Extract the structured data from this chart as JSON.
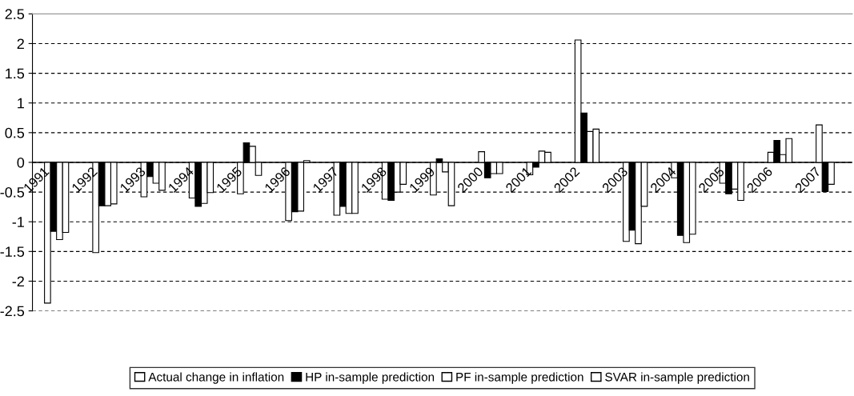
{
  "chart_data": {
    "type": "bar",
    "categories": [
      "1991",
      "1992",
      "1993",
      "1994",
      "1995",
      "1996",
      "1997",
      "1998",
      "1999",
      "2000",
      "2001",
      "2002",
      "2003",
      "2004",
      "2005",
      "2006",
      "2007"
    ],
    "series": [
      {
        "name": "Actual change in inflation",
        "color": "#ffffff",
        "values": [
          -2.37,
          -1.52,
          -0.58,
          -0.6,
          -0.53,
          -0.98,
          -0.89,
          -0.62,
          -0.55,
          0.18,
          -0.21,
          2.06,
          -1.33,
          -0.26,
          -0.35,
          0.17,
          0.63
        ]
      },
      {
        "name": "HP in-sample prediction",
        "color": "#000000",
        "values": [
          -1.16,
          -0.73,
          -0.24,
          -0.74,
          0.33,
          -0.83,
          -0.74,
          -0.64,
          0.06,
          -0.26,
          -0.08,
          0.83,
          -1.14,
          -1.23,
          -0.53,
          0.37,
          -0.49
        ]
      },
      {
        "name": "PF in-sample prediction",
        "color": "#ffffff",
        "values": [
          -1.3,
          -0.73,
          -0.35,
          -0.69,
          0.27,
          -0.82,
          -0.86,
          -0.5,
          -0.16,
          -0.19,
          0.19,
          0.52,
          -1.37,
          -1.35,
          -0.45,
          0.13,
          -0.37
        ]
      },
      {
        "name": "SVAR in-sample prediction",
        "color": "#ffffff",
        "values": [
          -1.18,
          -0.7,
          -0.47,
          -0.51,
          -0.22,
          0.03,
          -0.86,
          -0.37,
          -0.73,
          -0.19,
          0.17,
          0.56,
          -0.74,
          -1.21,
          -0.64,
          0.4,
          null
        ]
      }
    ],
    "ylim": [
      -2.5,
      2.5
    ],
    "yticks": [
      -2.5,
      -2,
      -1.5,
      -1,
      -0.5,
      0,
      0.5,
      1,
      1.5,
      2,
      2.5
    ],
    "grid": "y",
    "legend": "bottom"
  }
}
